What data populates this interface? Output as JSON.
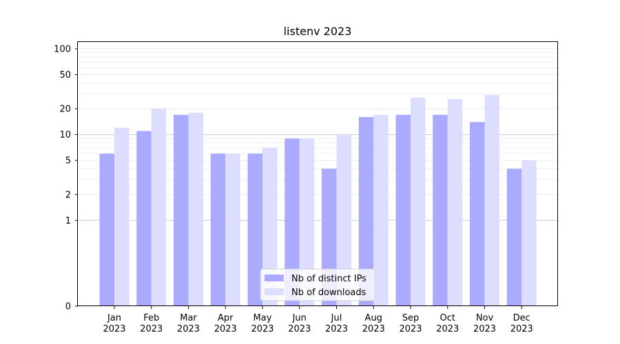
{
  "chart_data": {
    "type": "bar",
    "title": "listenv 2023",
    "xlabel": "",
    "ylabel": "",
    "y_scale": "symlog",
    "ylim": [
      0,
      120
    ],
    "y_ticks": [
      0,
      1,
      2,
      5,
      10,
      20,
      50,
      100
    ],
    "categories": [
      "Jan\n2023",
      "Feb\n2023",
      "Mar\n2023",
      "Apr\n2023",
      "May\n2023",
      "Jun\n2023",
      "Jul\n2023",
      "Aug\n2023",
      "Sep\n2023",
      "Oct\n2023",
      "Nov\n2023",
      "Dec\n2023"
    ],
    "series": [
      {
        "name": "Nb of distinct IPs",
        "color": "#aaaaff",
        "values": [
          6,
          11,
          17,
          6,
          6,
          9,
          4,
          16,
          17,
          17,
          14,
          4
        ]
      },
      {
        "name": "Nb of downloads",
        "color": "#ddddff",
        "values": [
          12,
          20,
          18,
          6,
          7,
          9,
          10,
          17,
          27,
          26,
          29,
          5
        ]
      }
    ],
    "legend_position": "bottom-center",
    "grid": true
  }
}
